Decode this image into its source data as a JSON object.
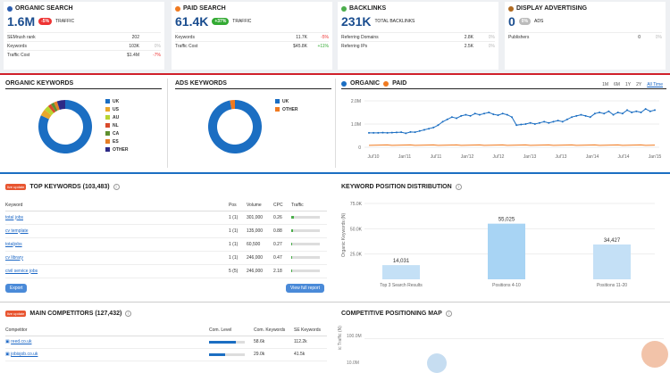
{
  "summary": [
    {
      "title": "ORGANIC SEARCH",
      "dot": "#2a5db0",
      "value": "1.6M",
      "badge": "-5%",
      "badge_color": "#e33",
      "sub": "TRAFFIC",
      "rows": [
        [
          "SEMrush rank",
          "202",
          ""
        ],
        [
          "Keywords",
          "103K",
          "0%"
        ],
        [
          "Traffic Cost",
          "$1.4M",
          "-7%"
        ]
      ]
    },
    {
      "title": "PAID SEARCH",
      "dot": "#f07a20",
      "value": "61.4K",
      "badge": "+37%",
      "badge_color": "#3a3",
      "sub": "TRAFFIC",
      "rows": [
        [
          "Keywords",
          "11.7K",
          "-5%"
        ],
        [
          "Traffic Cost",
          "$45.8K",
          "+11%"
        ]
      ]
    },
    {
      "title": "BACKLINKS",
      "dot": "#4cae4c",
      "value": "231K",
      "badge": "",
      "badge_color": "",
      "sub": "TOTAL BACKLINKS",
      "rows": [
        [
          "Referring Domains",
          "2.8K",
          "0%"
        ],
        [
          "Referring IPs",
          "2.5K",
          "0%"
        ]
      ]
    },
    {
      "title": "DISPLAY ADVERTISING",
      "dot": "#b06a20",
      "value": "0",
      "badge": "0%",
      "badge_color": "#bbb",
      "sub": "ADS",
      "rows": [
        [
          "Publishers",
          "0",
          "0%"
        ]
      ]
    }
  ],
  "organic_keywords": {
    "title": "ORGANIC KEYWORDS",
    "legend": [
      "UK",
      "US",
      "AU",
      "NL",
      "CA",
      "ES",
      "OTHER"
    ],
    "colors": [
      "#1b6ec2",
      "#e9a72b",
      "#b8d430",
      "#d94a2b",
      "#5e8f2f",
      "#e57f26",
      "#2d2a86"
    ],
    "values": [
      82,
      4,
      3,
      2,
      2,
      2,
      5
    ]
  },
  "ads_keywords": {
    "title": "ADS KEYWORDS",
    "legend": [
      "UK",
      "OTHER"
    ],
    "colors": [
      "#1b6ec2",
      "#f07a20"
    ],
    "values": [
      97,
      3
    ]
  },
  "trend": {
    "organic_label": "ORGANIC",
    "paid_label": "PAID",
    "ranges": [
      "1M",
      "6M",
      "1Y",
      "2Y",
      "All Time"
    ],
    "yticks": [
      "2.0M",
      "1.0M",
      "0"
    ],
    "xticks": [
      "Jul'10",
      "Jan'11",
      "Jul'11",
      "Jan'12",
      "Jul'12",
      "Jan'13",
      "Jul'13",
      "Jan'14",
      "Jul'14",
      "Jan'15"
    ]
  },
  "top_keywords": {
    "live": "live update",
    "title": "TOP KEYWORDS (103,483)",
    "info": "i",
    "headers": [
      "Keyword",
      "Pos",
      "Volume",
      "CPC",
      "Traffic"
    ],
    "rows": [
      [
        "total jobs",
        "1 (1)",
        "301,000",
        "0.26"
      ],
      [
        "cv template",
        "1 (1)",
        "135,000",
        "0.88"
      ],
      [
        "totaljobs",
        "1 (1)",
        "60,500",
        "0.27"
      ],
      [
        "cv library",
        "1 (1)",
        "246,000",
        "0.47"
      ],
      [
        "civil service jobs",
        "5 (5)",
        "246,000",
        "2.18"
      ]
    ],
    "traffic": [
      0.08,
      0.04,
      0.02,
      0.02,
      0.01
    ],
    "export": "Export",
    "view": "View full report"
  },
  "position_dist": {
    "title": "KEYWORD POSITION DISTRIBUTION",
    "info": "i",
    "ylabel": "Organic Keywords (N)",
    "yticks": [
      "75.0K",
      "50.0K",
      "25.0K"
    ]
  },
  "chart_data": {
    "type": "bar",
    "categories": [
      "Top 3 Search Results",
      "Positions 4-10",
      "Positions 11-20"
    ],
    "values": [
      14031,
      55025,
      34427
    ],
    "labels": [
      "14,031",
      "55,025",
      "34,427"
    ],
    "ylim": [
      0,
      75000
    ],
    "ylabel": "Organic Keywords (N)"
  },
  "competitors": {
    "live": "live update",
    "title": "MAIN COMPETITORS (127,432)",
    "info": "i",
    "headers": [
      "Competitor",
      "Com. Level",
      "Com. Keywords",
      "SE Keywords"
    ],
    "rows": [
      [
        "reed.co.uk",
        "58.6k",
        "112.2k",
        0.75
      ],
      [
        "jobisjob.co.uk",
        "29.0k",
        "41.5k",
        0.45
      ]
    ]
  },
  "positioning": {
    "title": "COMPETITIVE POSITIONING MAP",
    "info": "i",
    "ytick": "100.0M",
    "ytick2": "10.0M",
    "ylabel": "ic Traffic (N)"
  }
}
